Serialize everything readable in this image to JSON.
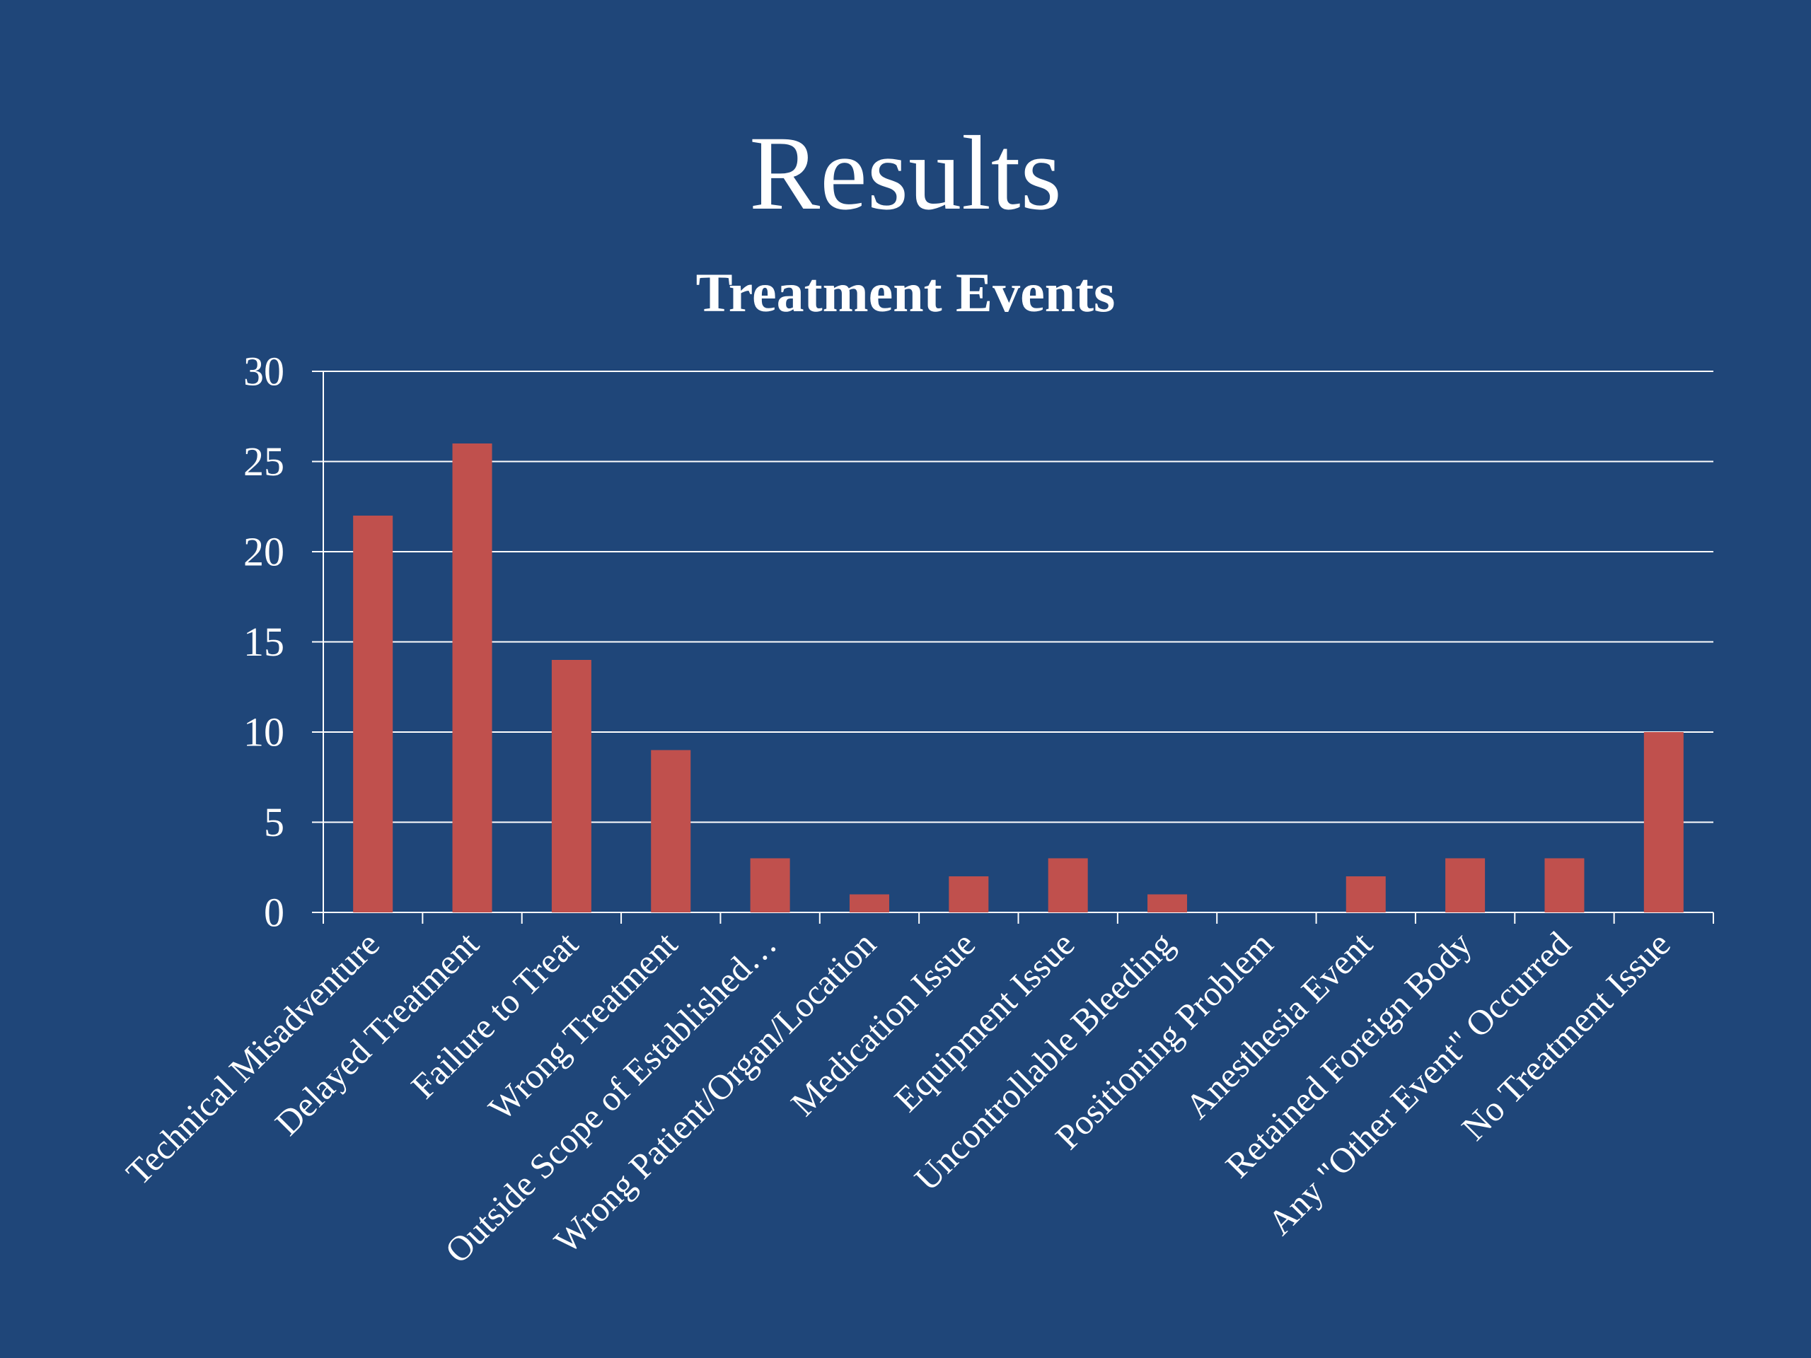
{
  "slide": {
    "title": "Results"
  },
  "colors": {
    "background": "#1f4679",
    "bar": "#c0504d",
    "text": "#ffffff",
    "gridline": "#ffffff"
  },
  "chart_data": {
    "type": "bar",
    "title": "Treatment Events",
    "xlabel": "",
    "ylabel": "",
    "ylim": [
      0,
      30
    ],
    "yticks": [
      0,
      5,
      10,
      15,
      20,
      25,
      30
    ],
    "grid": true,
    "legend": "none",
    "categories": [
      "Technical Misadventure",
      "Delayed Treatment",
      "Failure to Treat",
      "Wrong Treatment",
      "Outside Scope of Established…",
      "Wrong Patient/Organ/Location",
      "Medication Issue",
      "Equipment Issue",
      "Uncontrollable Bleeding",
      "Positioning Problem",
      "Anesthesia Event",
      "Retained Foreign Body",
      "Any \"Other Event\" Occurred",
      "No Treatment Issue"
    ],
    "values": [
      22,
      26,
      14,
      9,
      3,
      1,
      2,
      3,
      1,
      0,
      2,
      3,
      3,
      10
    ]
  }
}
